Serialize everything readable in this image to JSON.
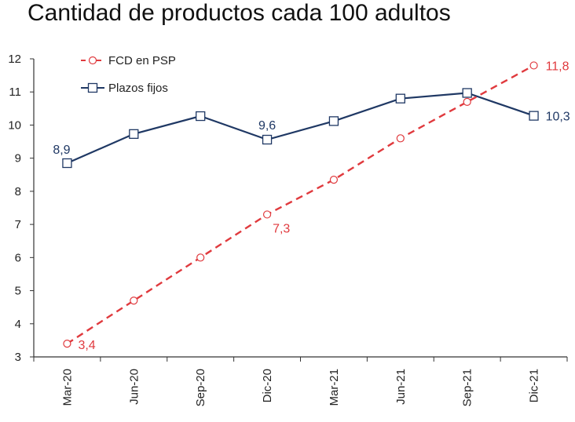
{
  "chart_data": {
    "type": "line",
    "title": "Cantidad de productos cada 100 adultos",
    "categories": [
      "Mar-20",
      "Jun-20",
      "Sep-20",
      "Dic-20",
      "Mar-21",
      "Jun-21",
      "Sep-21",
      "Dic-21"
    ],
    "ylim": [
      3,
      12
    ],
    "yticks": [
      "3",
      "4",
      "5",
      "6",
      "7",
      "8",
      "9",
      "10",
      "11",
      "12"
    ],
    "grid": false,
    "legend_position": "top-left",
    "series": [
      {
        "name": "FCD en PSP",
        "color": "#e03a3e",
        "style": "dashed",
        "marker": "circle",
        "values": [
          3.4,
          4.7,
          6.0,
          7.3,
          8.35,
          9.6,
          10.7,
          11.8
        ],
        "labels": [
          {
            "index": 0,
            "text": "3,4"
          },
          {
            "index": 3,
            "text": "7,3"
          },
          {
            "index": 7,
            "text": "11,8"
          }
        ]
      },
      {
        "name": "Plazos fijos",
        "color": "#1f3864",
        "style": "solid",
        "marker": "square",
        "values": [
          8.85,
          9.73,
          10.27,
          9.56,
          10.12,
          10.8,
          10.97,
          10.28
        ],
        "labels": [
          {
            "index": 0,
            "text": "8,9"
          },
          {
            "index": 3,
            "text": "9,6"
          },
          {
            "index": 7,
            "text": "10,3"
          }
        ]
      }
    ]
  }
}
